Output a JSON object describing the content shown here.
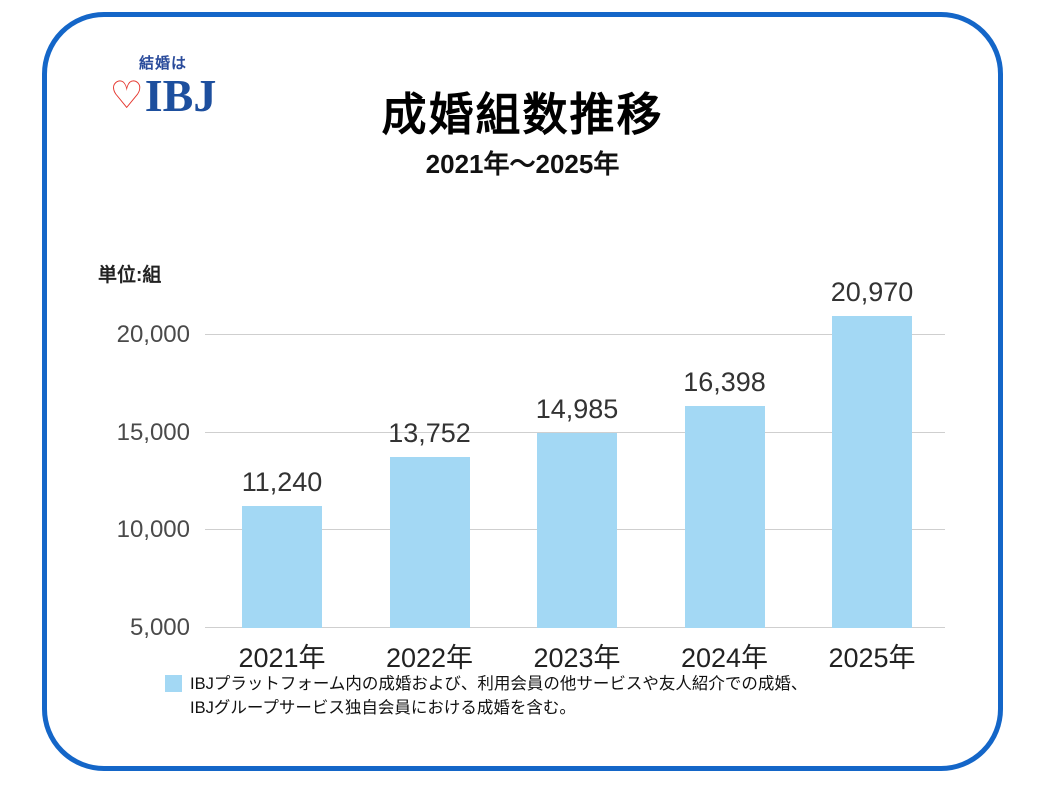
{
  "logo": {
    "tagline": "結婚は",
    "name": "IBJ",
    "heart_color": "#e5372f",
    "text_color": "#1d4f9e"
  },
  "header": {
    "title": "成婚組数推移",
    "subtitle": "2021年～2025年"
  },
  "chart_data": {
    "type": "bar",
    "title": "成婚組数推移",
    "subtitle": "2021年～2025年",
    "unit_label": "単位:組",
    "categories": [
      "2021年",
      "2022年",
      "2023年",
      "2024年",
      "2025年"
    ],
    "values": [
      11240,
      13752,
      14985,
      16398,
      20970
    ],
    "value_labels": [
      "11,240",
      "13,752",
      "14,985",
      "16,398",
      "20,970"
    ],
    "yticks": [
      5000,
      10000,
      15000,
      20000
    ],
    "ytick_labels": [
      "5,000",
      "10,000",
      "15,000",
      "20,000"
    ],
    "ylim": [
      5000,
      21400
    ],
    "bar_color": "#a3d8f4",
    "grid": true,
    "legend_position": "bottom"
  },
  "footnote": {
    "swatch_color": "#a3d8f4",
    "line1": "IBJプラットフォーム内の成婚および、利用会員の他サービスや友人紹介での成婚、",
    "line2": "IBJグループサービス独自会員における成婚を含む。"
  },
  "frame": {
    "border_color": "#1466c8"
  }
}
